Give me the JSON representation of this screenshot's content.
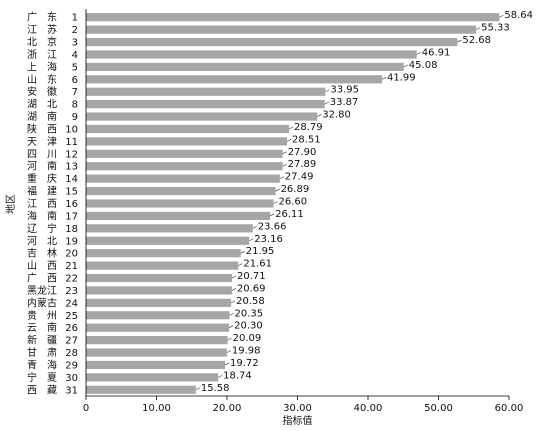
{
  "chart_data": {
    "type": "bar",
    "orientation": "horizontal",
    "xlabel": "指标值",
    "ylabel": "地区",
    "xlim": [
      0,
      60
    ],
    "xticks": [
      "0",
      "10.00",
      "20.00",
      "30.00",
      "40.00",
      "50.00",
      "60.00"
    ],
    "grid": false,
    "bar_color": "#a6a6a6",
    "categories": [
      {
        "region": "广　东",
        "rank": "1",
        "value": 58.64,
        "label": "58.64"
      },
      {
        "region": "江　苏",
        "rank": "2",
        "value": 55.33,
        "label": "55.33"
      },
      {
        "region": "北　京",
        "rank": "3",
        "value": 52.68,
        "label": "52.68"
      },
      {
        "region": "浙　江",
        "rank": "4",
        "value": 46.91,
        "label": "46.91"
      },
      {
        "region": "上　海",
        "rank": "5",
        "value": 45.08,
        "label": "45.08"
      },
      {
        "region": "山　东",
        "rank": "6",
        "value": 41.99,
        "label": "41.99"
      },
      {
        "region": "安　徽",
        "rank": "7",
        "value": 33.95,
        "label": "33.95"
      },
      {
        "region": "湖　北",
        "rank": "8",
        "value": 33.87,
        "label": "33.87"
      },
      {
        "region": "湖　南",
        "rank": "9",
        "value": 32.8,
        "label": "32.80"
      },
      {
        "region": "陕　西",
        "rank": "10",
        "value": 28.79,
        "label": "28.79"
      },
      {
        "region": "天　津",
        "rank": "11",
        "value": 28.51,
        "label": "28.51"
      },
      {
        "region": "四　川",
        "rank": "12",
        "value": 27.9,
        "label": "27.90"
      },
      {
        "region": "河　南",
        "rank": "13",
        "value": 27.89,
        "label": "27.89"
      },
      {
        "region": "重　庆",
        "rank": "14",
        "value": 27.49,
        "label": "27.49"
      },
      {
        "region": "福　建",
        "rank": "15",
        "value": 26.89,
        "label": "26.89"
      },
      {
        "region": "江　西",
        "rank": "16",
        "value": 26.6,
        "label": "26.60"
      },
      {
        "region": "海　南",
        "rank": "17",
        "value": 26.11,
        "label": "26.11"
      },
      {
        "region": "辽　宁",
        "rank": "18",
        "value": 23.66,
        "label": "23.66"
      },
      {
        "region": "河　北",
        "rank": "19",
        "value": 23.16,
        "label": "23.16"
      },
      {
        "region": "吉　林",
        "rank": "20",
        "value": 21.95,
        "label": "21.95"
      },
      {
        "region": "山　西",
        "rank": "21",
        "value": 21.61,
        "label": "21.61"
      },
      {
        "region": "广　西",
        "rank": "22",
        "value": 20.71,
        "label": "20.71"
      },
      {
        "region": "黑龙江",
        "rank": "23",
        "value": 20.69,
        "label": "20.69"
      },
      {
        "region": "内蒙古",
        "rank": "24",
        "value": 20.58,
        "label": "20.58"
      },
      {
        "region": "贵　州",
        "rank": "25",
        "value": 20.35,
        "label": "20.35"
      },
      {
        "region": "云　南",
        "rank": "26",
        "value": 20.3,
        "label": "20.30"
      },
      {
        "region": "新　疆",
        "rank": "27",
        "value": 20.09,
        "label": "20.09"
      },
      {
        "region": "甘　肃",
        "rank": "28",
        "value": 19.98,
        "label": "19.98"
      },
      {
        "region": "青　海",
        "rank": "29",
        "value": 19.72,
        "label": "19.72"
      },
      {
        "region": "宁　夏",
        "rank": "30",
        "value": 18.74,
        "label": "18.74"
      },
      {
        "region": "西　藏",
        "rank": "31",
        "value": 15.58,
        "label": "15.58"
      }
    ]
  }
}
